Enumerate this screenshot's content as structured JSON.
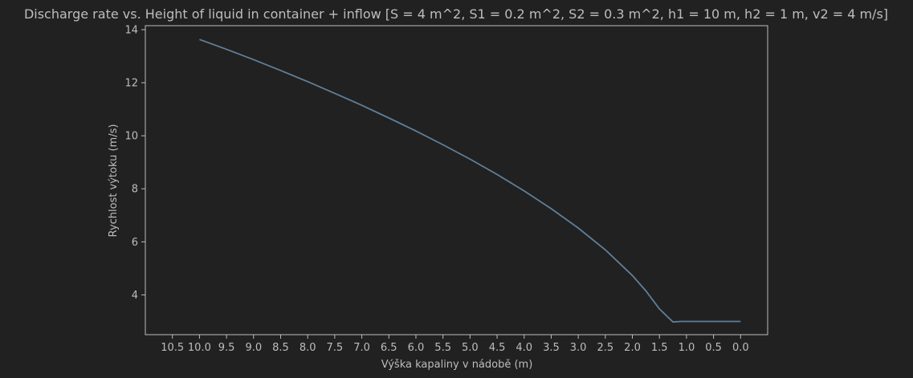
{
  "chart_data": {
    "type": "line",
    "title": "Discharge rate vs. Height of liquid in container + inflow [S = 4 m^2, S1 = 0.2 m^2, S2 = 0.3 m^2, h1 = 10 m, h2 = 1 m, v2 = 4 m/s]",
    "xlabel": "Výška kapaliny v nádobě (m)",
    "ylabel": "Rychlost výtoku (m/s)",
    "x_reversed": true,
    "xlim": [
      11.0,
      -0.5
    ],
    "ylim": [
      2.5,
      14.15
    ],
    "xticks": [
      10.5,
      10.0,
      9.5,
      9.0,
      8.5,
      8.0,
      7.5,
      7.0,
      6.5,
      6.0,
      5.5,
      5.0,
      4.5,
      4.0,
      3.5,
      3.0,
      2.5,
      2.0,
      1.5,
      1.0,
      0.5,
      0.0
    ],
    "xtick_labels": [
      "10.5",
      "10.0",
      "9.5",
      "9.0",
      "8.5",
      "8.0",
      "7.5",
      "7.0",
      "6.5",
      "6.0",
      "5.5",
      "5.0",
      "4.5",
      "4.0",
      "3.5",
      "3.0",
      "2.5",
      "2.0",
      "1.5",
      "1.0",
      "0.5",
      "0.0"
    ],
    "yticks": [
      4,
      6,
      8,
      10,
      12,
      14
    ],
    "ytick_labels": [
      "4",
      "6",
      "8",
      "10",
      "12",
      "14"
    ],
    "grid": false,
    "series": [
      {
        "color": "#5f7f99",
        "x": [
          10.0,
          9.5,
          9.0,
          8.5,
          8.0,
          7.5,
          7.0,
          6.5,
          6.0,
          5.5,
          5.0,
          4.5,
          4.0,
          3.5,
          3.0,
          2.5,
          2.0,
          1.75,
          1.5,
          1.25,
          1.1,
          1.0,
          0.5,
          0.0
        ],
        "y": [
          13.63,
          13.26,
          12.87,
          12.46,
          12.04,
          11.6,
          11.15,
          10.67,
          10.18,
          9.66,
          9.12,
          8.54,
          7.92,
          7.25,
          6.52,
          5.7,
          4.73,
          4.15,
          3.47,
          2.98,
          3.0,
          3.0,
          3.0,
          3.0
        ]
      }
    ]
  }
}
